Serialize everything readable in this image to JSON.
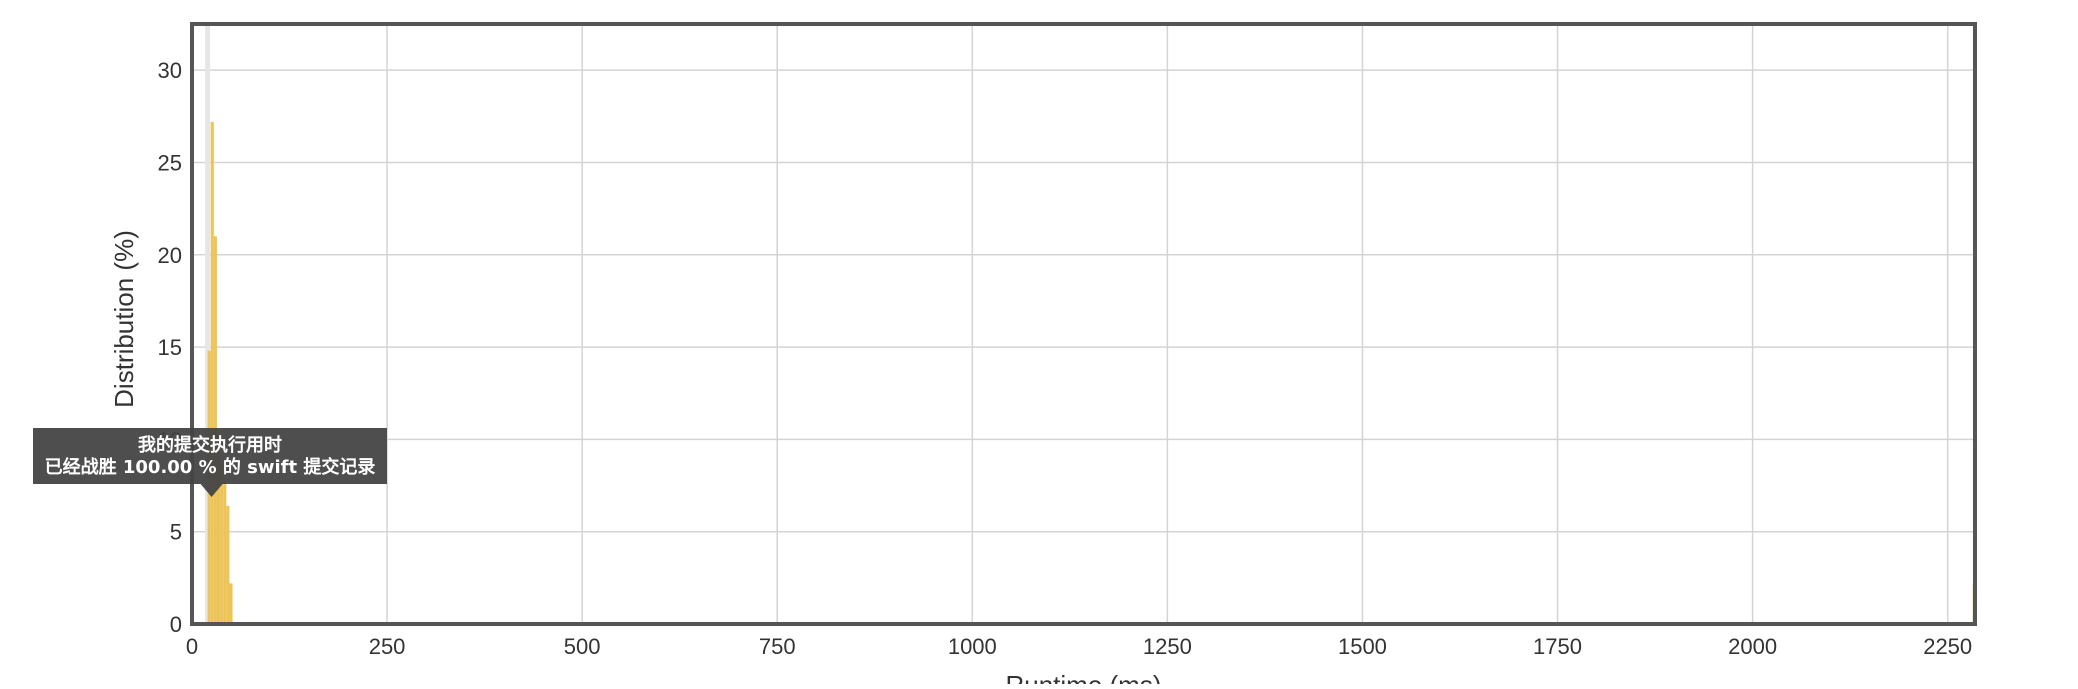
{
  "chart_data": {
    "type": "bar",
    "title": "",
    "xlabel": "Runtime (ms)",
    "ylabel": "Distribution (%)",
    "xlim": [
      0,
      2285
    ],
    "ylim": [
      0,
      32.5
    ],
    "xticks": [
      0,
      250,
      500,
      750,
      1000,
      1250,
      1500,
      1750,
      2000,
      2250
    ],
    "yticks": [
      0,
      5,
      10,
      15,
      20,
      25,
      30
    ],
    "grid": true,
    "highlight_x": 20,
    "bin_width": 4,
    "bars": [
      {
        "x": 20,
        "value": 14.8
      },
      {
        "x": 24,
        "value": 27.2
      },
      {
        "x": 28,
        "value": 21.0
      },
      {
        "x": 32,
        "value": 10.2
      },
      {
        "x": 36,
        "value": 8.6
      },
      {
        "x": 40,
        "value": 7.8
      },
      {
        "x": 44,
        "value": 6.4
      },
      {
        "x": 48,
        "value": 2.2
      },
      {
        "x": 2282,
        "value": 2.2
      }
    ],
    "bar_color": "#edc45a",
    "highlight_color": "#e6e6e6",
    "tooltip": {
      "line1": "我的提交执行用时",
      "line2": "已经战胜 100.00 % 的 swift 提交记录"
    }
  }
}
